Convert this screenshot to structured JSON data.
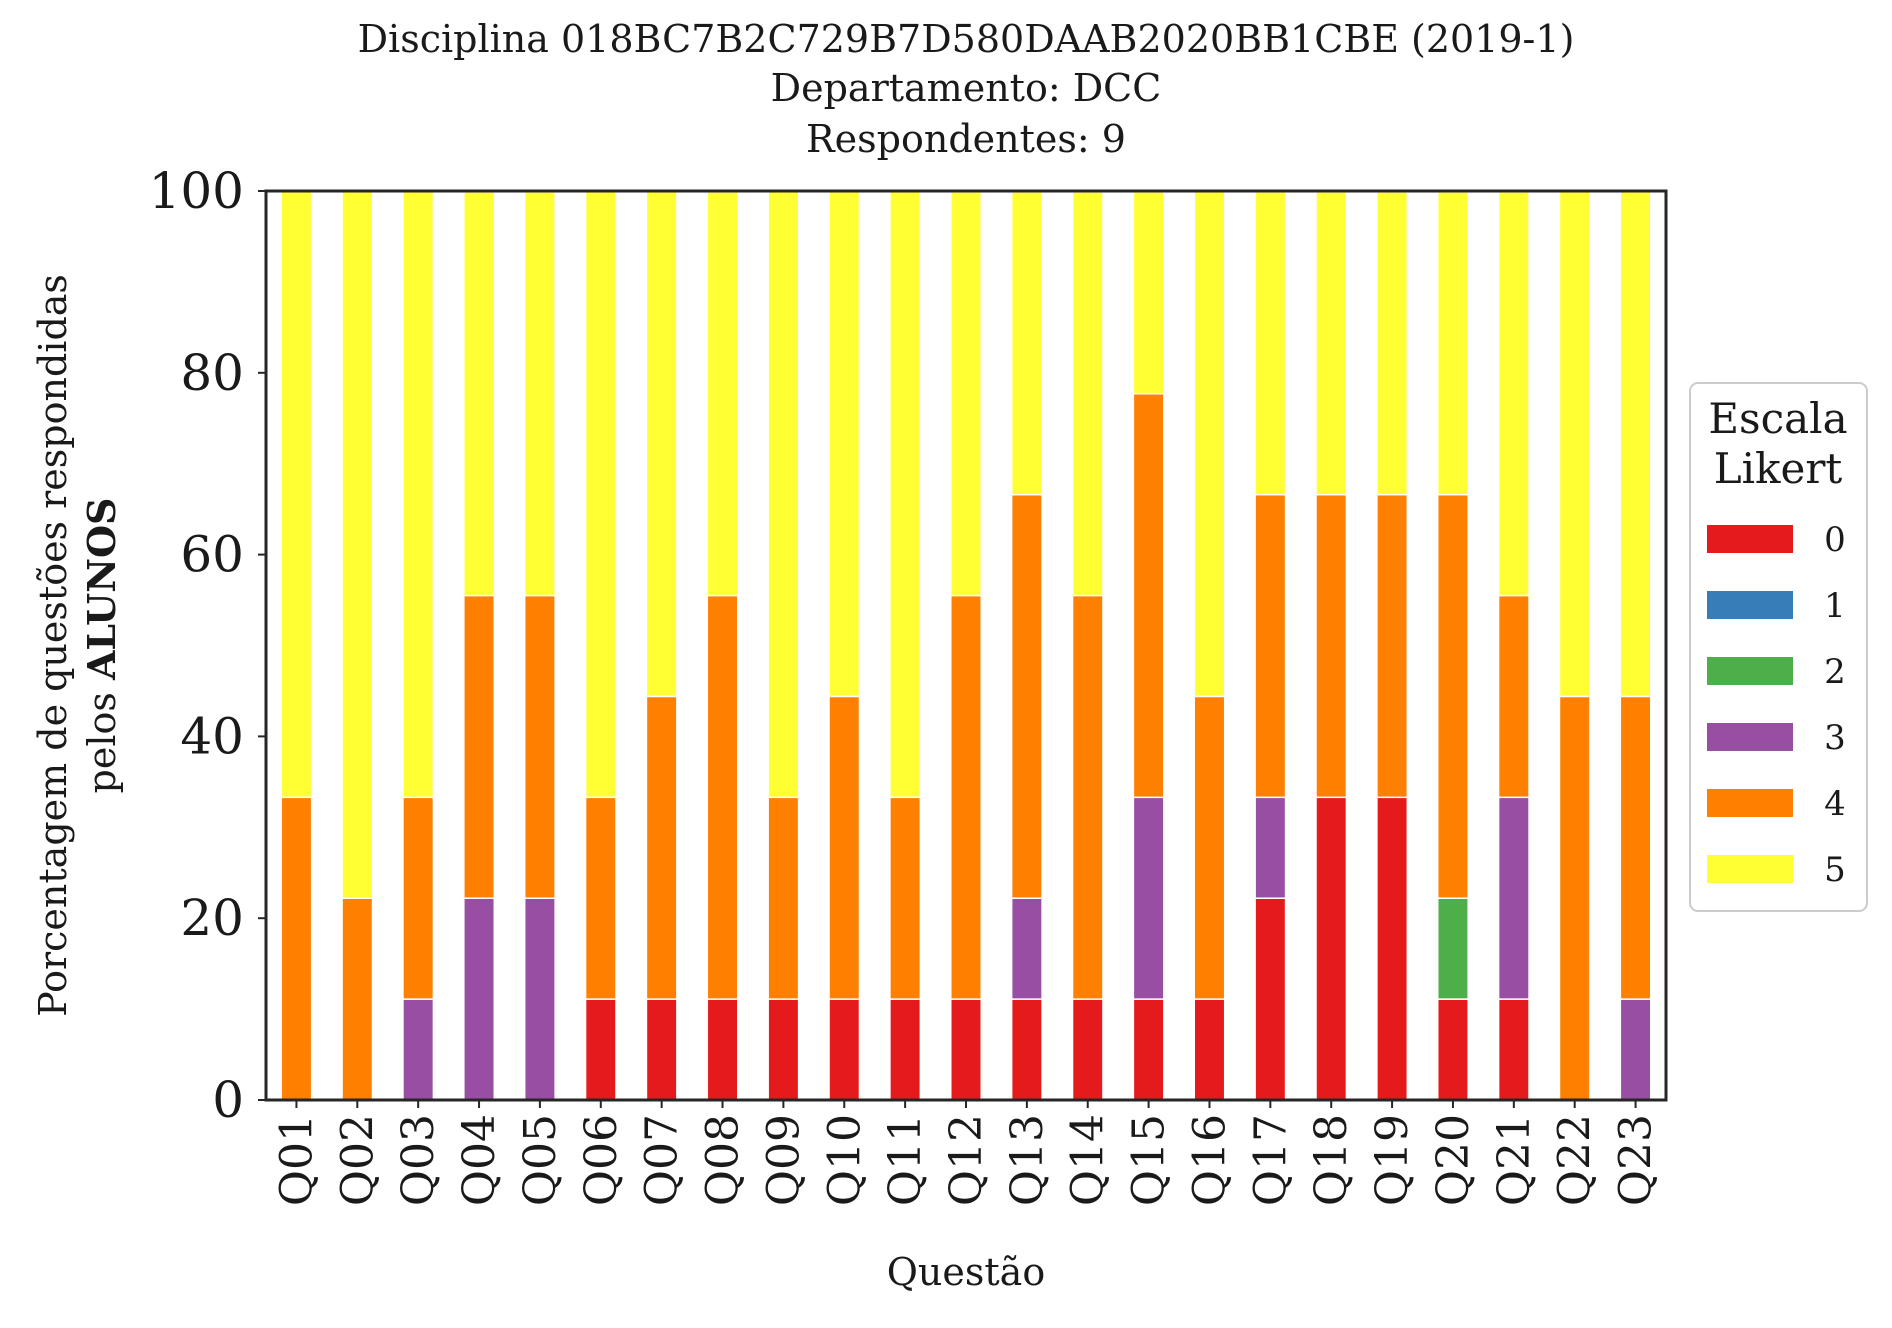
{
  "chart_data": {
    "type": "bar",
    "stacked": true,
    "title_lines": [
      "Disciplina 018BC7B2C729B7D580DAAB2020BB1CBE (2019-1)",
      "Departamento: DCC",
      "Respondentes: 9"
    ],
    "xlabel": "Questão",
    "ylabel_line1": "Porcentagem de questões respondidas",
    "ylabel_line2_prefix": "pelos ",
    "ylabel_line2_bold": "ALUNOS",
    "ylim": [
      0,
      100
    ],
    "yticks": [
      "0",
      "20",
      "40",
      "60",
      "80",
      "100"
    ],
    "grid": false,
    "legend_placement": "right",
    "legend_title_lines": [
      "Escala",
      "Likert"
    ],
    "categories": [
      "Q01",
      "Q02",
      "Q03",
      "Q04",
      "Q05",
      "Q06",
      "Q07",
      "Q08",
      "Q09",
      "Q10",
      "Q11",
      "Q12",
      "Q13",
      "Q14",
      "Q15",
      "Q16",
      "Q17",
      "Q18",
      "Q19",
      "Q20",
      "Q21",
      "Q22",
      "Q23"
    ],
    "series": [
      {
        "name": "0",
        "color": "#e41a1c",
        "values": [
          0,
          0,
          0,
          0,
          0,
          11.1,
          11.1,
          11.1,
          11.1,
          11.1,
          11.1,
          11.1,
          11.1,
          11.1,
          11.1,
          11.1,
          22.2,
          33.3,
          33.3,
          11.1,
          11.1,
          0,
          0
        ]
      },
      {
        "name": "1",
        "color": "#377eb8",
        "values": [
          0,
          0,
          0,
          0,
          0,
          0,
          0,
          0,
          0,
          0,
          0,
          0,
          0,
          0,
          0,
          0,
          0,
          0,
          0,
          0,
          0,
          0,
          0
        ]
      },
      {
        "name": "2",
        "color": "#4daf4a",
        "values": [
          0,
          0,
          0,
          0,
          0,
          0,
          0,
          0,
          0,
          0,
          0,
          0,
          0,
          0,
          0,
          0,
          0,
          0,
          0,
          11.1,
          0,
          0,
          0
        ]
      },
      {
        "name": "3",
        "color": "#984ea3",
        "values": [
          0,
          0,
          11.1,
          22.2,
          22.2,
          0,
          0,
          0,
          0,
          0,
          0,
          0,
          11.1,
          0,
          22.2,
          0,
          11.1,
          0,
          0,
          0,
          22.2,
          0,
          11.1
        ]
      },
      {
        "name": "4",
        "color": "#ff7f00",
        "values": [
          33.3,
          22.2,
          22.2,
          33.3,
          33.3,
          22.2,
          33.3,
          44.4,
          22.2,
          33.3,
          22.2,
          44.4,
          44.4,
          44.4,
          44.4,
          33.3,
          33.3,
          33.3,
          33.3,
          44.4,
          22.2,
          44.4,
          33.3
        ]
      },
      {
        "name": "5",
        "color": "#ffff33",
        "values": [
          66.7,
          77.8,
          66.7,
          44.4,
          44.4,
          66.7,
          55.6,
          44.4,
          66.7,
          55.6,
          66.7,
          44.4,
          33.3,
          44.4,
          22.2,
          55.6,
          33.3,
          33.3,
          33.3,
          33.3,
          44.4,
          55.6,
          55.6
        ]
      }
    ]
  }
}
